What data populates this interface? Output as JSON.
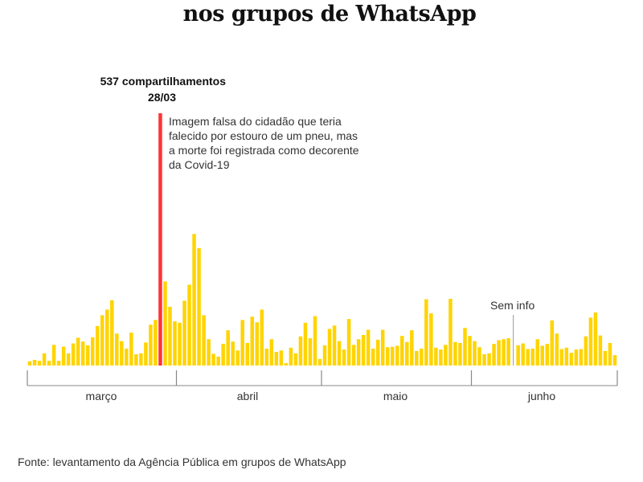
{
  "title": "nos grupos de WhatsApp",
  "source": "Fonte: levantamento da Agência Pública em grupos de WhatsApp",
  "colors": {
    "bar": "#FFD400",
    "highlight": "#FF3333",
    "axis": "#888888"
  },
  "chart_data": {
    "type": "bar",
    "title": "nos grupos de WhatsApp",
    "xlabel": "",
    "ylabel": "",
    "grid": false,
    "ylim": [
      0,
      537
    ],
    "month_labels": [
      "março",
      "abril",
      "maio",
      "junho"
    ],
    "months": [
      {
        "label": "março",
        "values": [
          9,
          12,
          10,
          26,
          10,
          44,
          10,
          40,
          26,
          47,
          59,
          51,
          43,
          60,
          84,
          107,
          119,
          139,
          68,
          52,
          36,
          70,
          24,
          26,
          49,
          87,
          97,
          537,
          179,
          125,
          94
        ]
      },
      {
        "label": "abril",
        "values": [
          91,
          138,
          172,
          280,
          250,
          107,
          56,
          25,
          19,
          46,
          75,
          51,
          32,
          97,
          48,
          104,
          92,
          119,
          36,
          56,
          29,
          32,
          5,
          38,
          26,
          62,
          91,
          58,
          105,
          14
        ]
      },
      {
        "label": "maio",
        "values": [
          43,
          78,
          85,
          52,
          34,
          99,
          44,
          56,
          65,
          76,
          36,
          55,
          76,
          39,
          40,
          42,
          63,
          50,
          75,
          31,
          36,
          141,
          111,
          38,
          34,
          44,
          142,
          50,
          48,
          80,
          63
        ]
      },
      {
        "label": "junho",
        "values": [
          52,
          39,
          24,
          26,
          46,
          54,
          56,
          58,
          null,
          43,
          47,
          35,
          36,
          56,
          42,
          46,
          96,
          68,
          35,
          38,
          27,
          34,
          35,
          62,
          102,
          113,
          64,
          31,
          48,
          22
        ]
      }
    ],
    "highlight": {
      "date": "28/03",
      "value": 537,
      "value_label": "537 compartilhamentos",
      "date_label": "28/03",
      "note": "Imagem falsa do cidadão que teria falecido por estouro de um pneu, mas a morte foi registrada como decorente da Covid-19"
    },
    "missing": {
      "date": "09/06",
      "label": "Sem info"
    }
  }
}
